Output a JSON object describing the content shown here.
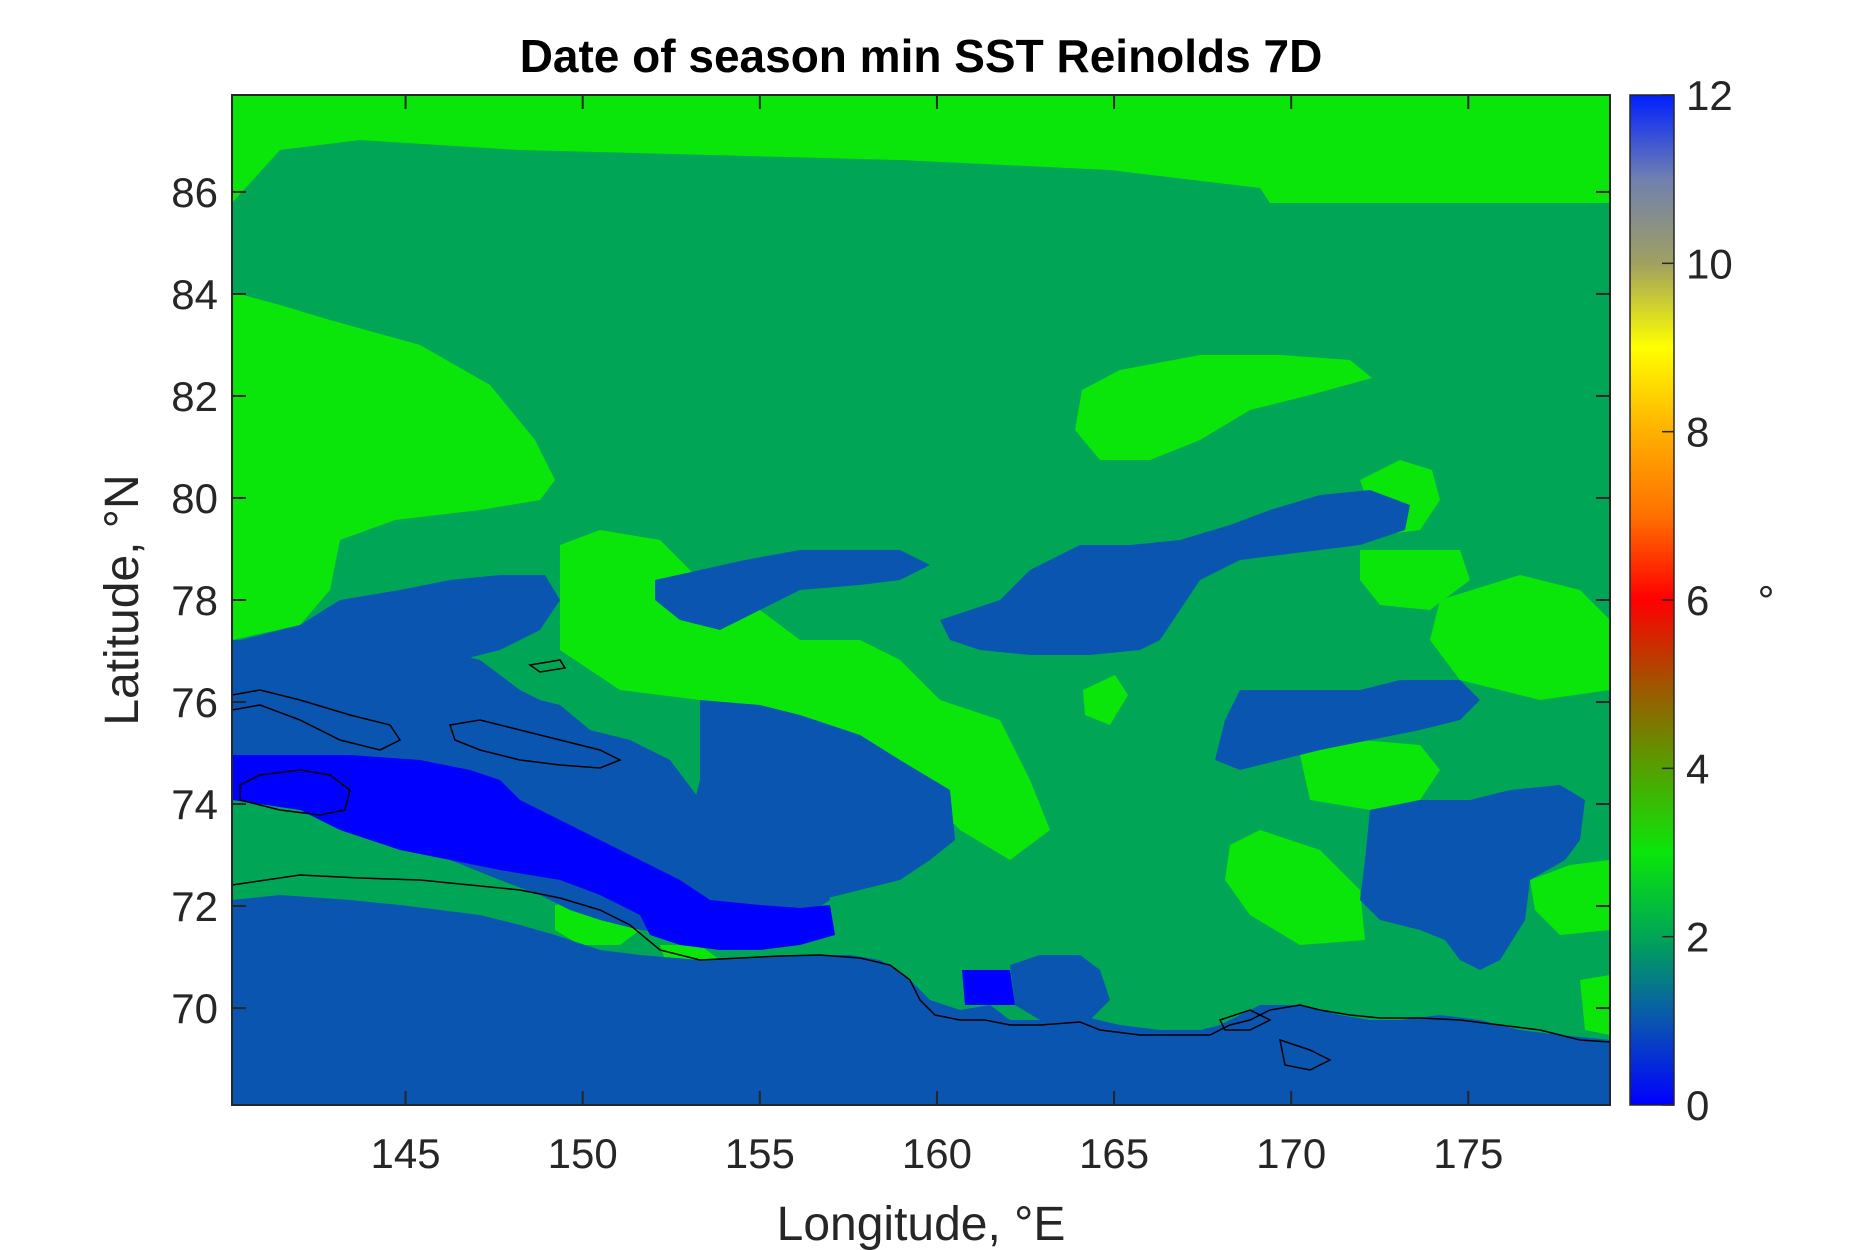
{
  "figure": {
    "title": "Date of season min SST Reinolds 7D",
    "xlabel": "Longitude, °E",
    "ylabel": "Latitude, °N",
    "colorbar_label": "°"
  },
  "map": {
    "lon_range": [
      140.1,
      179.0
    ],
    "lat_range": [
      68.1,
      87.9
    ],
    "x_ticks": [
      {
        "value": 145,
        "label": "145"
      },
      {
        "value": 150,
        "label": "150"
      },
      {
        "value": 155,
        "label": "155"
      },
      {
        "value": 160,
        "label": "160"
      },
      {
        "value": 165,
        "label": "165"
      },
      {
        "value": 170,
        "label": "170"
      },
      {
        "value": 175,
        "label": "175"
      }
    ],
    "y_ticks": [
      {
        "value": 70,
        "label": "70"
      },
      {
        "value": 72,
        "label": "72"
      },
      {
        "value": 74,
        "label": "74"
      },
      {
        "value": 76,
        "label": "76"
      },
      {
        "value": 78,
        "label": "78"
      },
      {
        "value": 80,
        "label": "80"
      },
      {
        "value": 82,
        "label": "82"
      },
      {
        "value": 84,
        "label": "84"
      },
      {
        "value": 86,
        "label": "86"
      }
    ],
    "colors": {
      "value_1": "#0a55b0",
      "value_2": "#00a655",
      "value_3": "#0ae60a",
      "value_0": "#0000ff",
      "coast": "#000000"
    }
  },
  "colorbar": {
    "range": [
      0,
      12
    ],
    "ticks": [
      {
        "value": 0,
        "label": "0"
      },
      {
        "value": 2,
        "label": "2"
      },
      {
        "value": 4,
        "label": "4"
      },
      {
        "value": 6,
        "label": "6"
      },
      {
        "value": 8,
        "label": "8"
      },
      {
        "value": 10,
        "label": "10"
      },
      {
        "value": 12,
        "label": "12"
      }
    ],
    "stops": [
      {
        "value": 0,
        "color": "#0000ff"
      },
      {
        "value": 1,
        "color": "#0a55b0"
      },
      {
        "value": 2,
        "color": "#00a655"
      },
      {
        "value": 3,
        "color": "#0ae60a"
      },
      {
        "value": 4,
        "color": "#55a000"
      },
      {
        "value": 5,
        "color": "#a05500"
      },
      {
        "value": 6,
        "color": "#ff0000"
      },
      {
        "value": 7,
        "color": "#ff7000"
      },
      {
        "value": 8,
        "color": "#ffb000"
      },
      {
        "value": 9,
        "color": "#ffff00"
      },
      {
        "value": 10,
        "color": "#a0a060"
      },
      {
        "value": 11,
        "color": "#7080b0"
      },
      {
        "value": 12,
        "color": "#0020ff"
      }
    ]
  }
}
